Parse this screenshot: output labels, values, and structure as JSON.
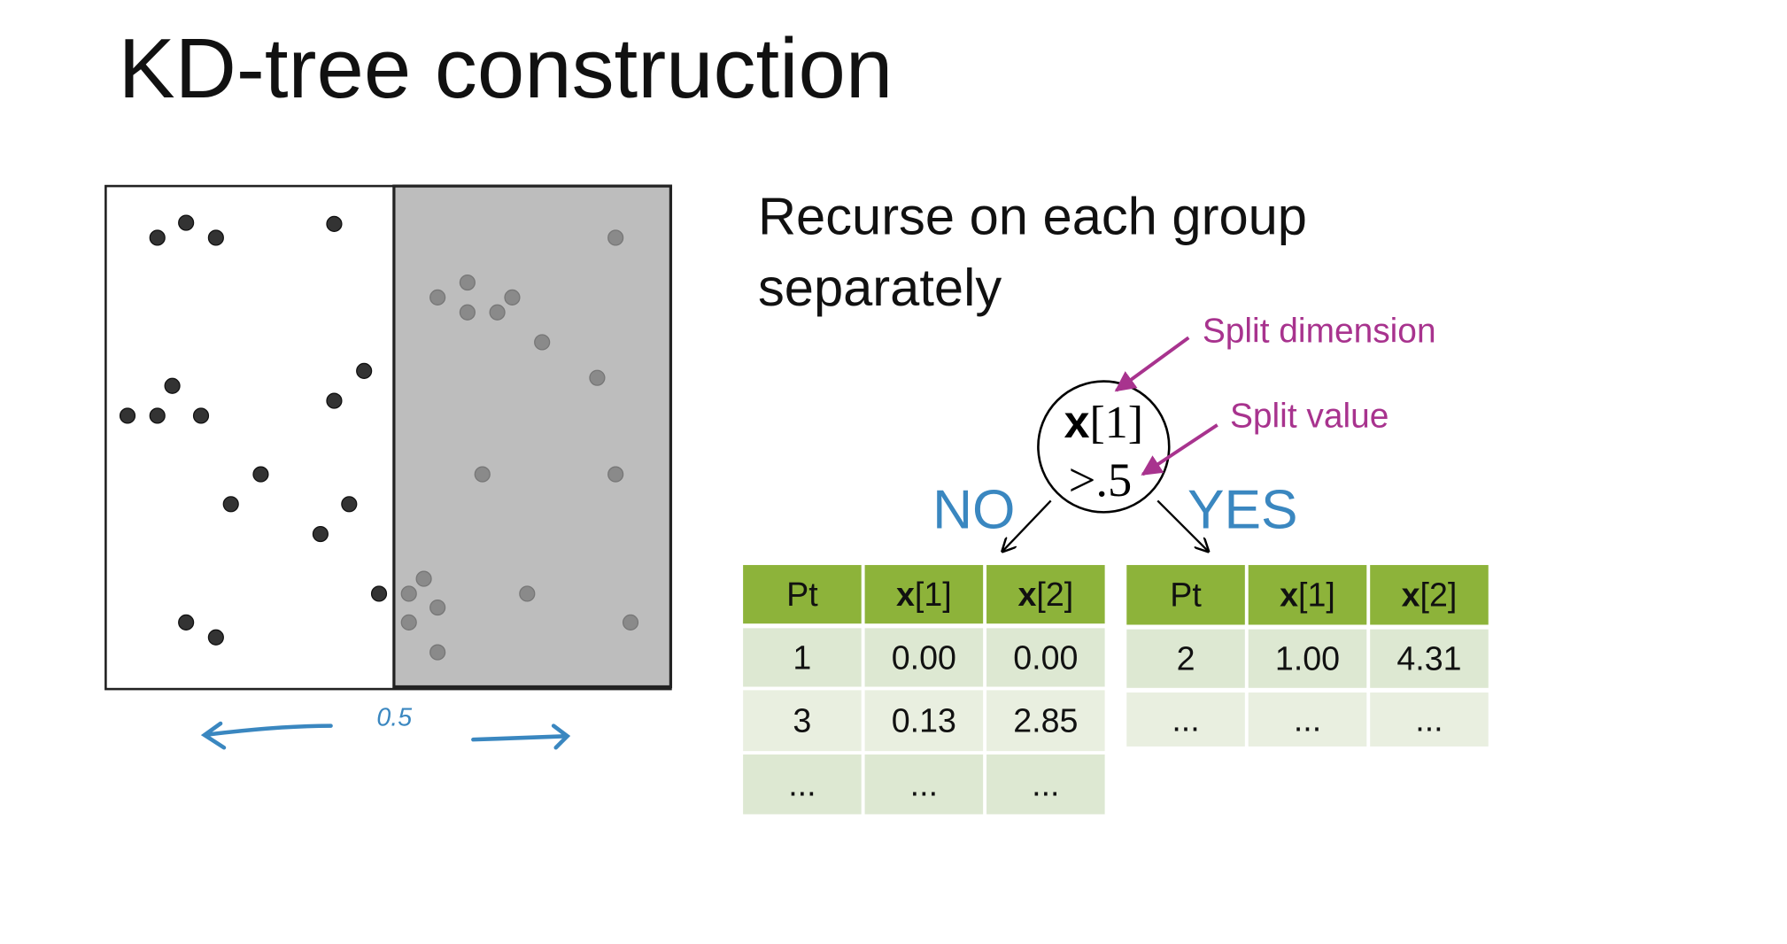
{
  "title": "KD-tree construction",
  "text_lines": [
    "Recurse on each group",
    "separately"
  ],
  "plot_split_label": "0.5",
  "node": {
    "var": "x",
    "index": "[1]",
    "threshold": ">.5"
  },
  "branches": {
    "no": "NO",
    "yes": "YES"
  },
  "annotations": {
    "dimension": "Split dimension",
    "value": "Split value"
  },
  "tables": [
    {
      "header": [
        [
          "Pt"
        ],
        [
          "x",
          "[1]"
        ],
        [
          "x",
          "[2]"
        ]
      ],
      "rows": [
        [
          "1",
          "0.00",
          "0.00"
        ],
        [
          "3",
          "0.13",
          "2.85"
        ],
        [
          "...",
          "...",
          "..."
        ]
      ]
    },
    {
      "header": [
        [
          "Pt"
        ],
        [
          "x",
          "[1]"
        ],
        [
          "x",
          "[2]"
        ]
      ],
      "rows": [
        [
          "2",
          "1.00",
          "4.31"
        ],
        [
          "...",
          "...",
          "..."
        ]
      ]
    }
  ]
}
